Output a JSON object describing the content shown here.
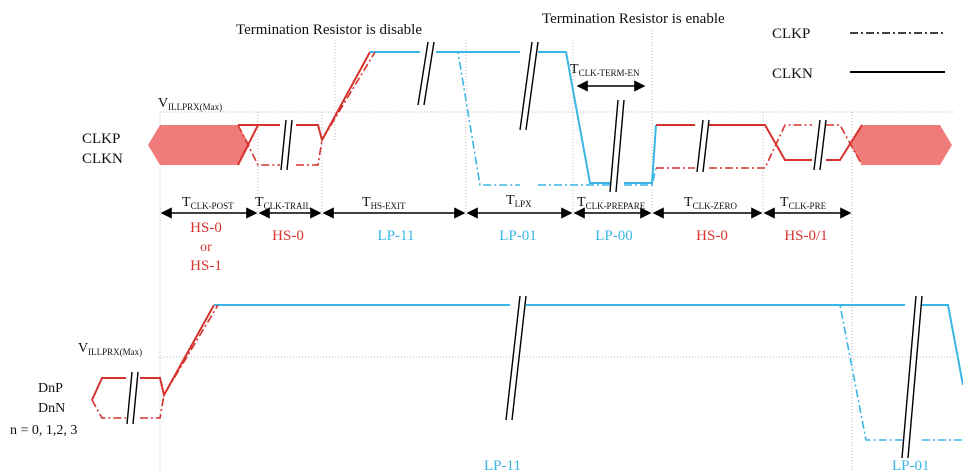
{
  "titles": {
    "term_disable": "Termination Resistor is disable",
    "term_enable": "Termination Resistor is enable"
  },
  "legend": {
    "clkp": "CLKP",
    "clkn": "CLKN"
  },
  "clock": {
    "vthr_main": "V",
    "vthr_sub": "ILLPRX(Max)",
    "label_p": "CLKP",
    "label_n": "CLKN",
    "term_en_main": "T",
    "term_en_sub": "CLK-TERM-EN"
  },
  "intervals": [
    {
      "t_main": "T",
      "t_sub": "CLK-POST",
      "state": [
        "HS-0",
        "or",
        "HS-1"
      ],
      "color": "#d6332e"
    },
    {
      "t_main": "T",
      "t_sub": "CLK-TRAIL",
      "state": [
        "HS-0"
      ],
      "color": "#d6332e"
    },
    {
      "t_main": "T",
      "t_sub": "HS-EXIT",
      "state": [
        "LP-11"
      ],
      "color": "#3ab6e6"
    },
    {
      "t_main": "T",
      "t_sub": "LPX",
      "state": [
        "LP-01"
      ],
      "color": "#3ab6e6"
    },
    {
      "t_main": "T",
      "t_sub": "CLK-PREPARE",
      "state": [
        "LP-00"
      ],
      "color": "#3ab6e6"
    },
    {
      "t_main": "T",
      "t_sub": "CLK-ZERO",
      "state": [
        "HS-0"
      ],
      "color": "#d6332e"
    },
    {
      "t_main": "T",
      "t_sub": "CLK-PRE",
      "state": [
        "HS-0/1"
      ],
      "color": "#d6332e"
    }
  ],
  "data_lane": {
    "vthr_main": "V",
    "vthr_sub": "ILLPRX(Max)",
    "label_p": "DnP",
    "label_n": "DnN",
    "label_idx": "n = 0, 1,2, 3",
    "state_lp11": "LP-11",
    "state_lp01": "LP-01"
  },
  "colors": {
    "hs": "#d6332e",
    "lp": "#3ab6e6",
    "hs_fill": "#f07b7b"
  }
}
